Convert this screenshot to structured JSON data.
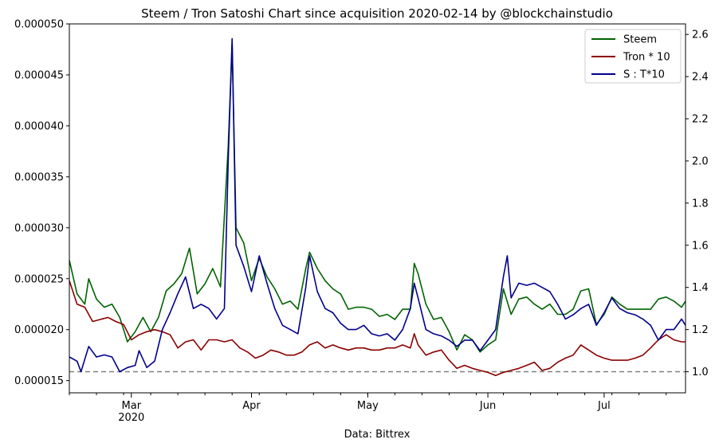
{
  "chart_data": {
    "type": "line",
    "title": "Steem / Tron Satoshi Chart since acquisition 2020-02-14 by @blockchainstudio",
    "xlabel": "Data: Bittrex",
    "x_start": "2020-02-14",
    "x_end": "2020-07-22",
    "xlim": [
      "2020-02-14",
      "2020-07-22"
    ],
    "x_ticks": [
      {
        "date": "2020-03-01",
        "label": "Mar",
        "sublabel": "2020"
      },
      {
        "date": "2020-04-01",
        "label": "Apr",
        "sublabel": ""
      },
      {
        "date": "2020-05-01",
        "label": "May",
        "sublabel": ""
      },
      {
        "date": "2020-06-01",
        "label": "Jun",
        "sublabel": ""
      },
      {
        "date": "2020-07-01",
        "label": "Jul",
        "sublabel": ""
      }
    ],
    "y_left": {
      "ylim": [
        1.38e-05,
        5e-05
      ],
      "ticks": [
        "0.000015",
        "0.000020",
        "0.000025",
        "0.000030",
        "0.000035",
        "0.000040",
        "0.000045",
        "0.000050"
      ],
      "tick_values": [
        1.5e-05,
        2e-05,
        2.5e-05,
        3e-05,
        3.5e-05,
        4e-05,
        4.5e-05,
        5e-05
      ]
    },
    "y_right": {
      "ylim": [
        0.9,
        2.65
      ],
      "ticks": [
        "1.0",
        "1.2",
        "1.4",
        "1.6",
        "1.8",
        "2.0",
        "2.2",
        "2.4",
        "2.6"
      ],
      "tick_values": [
        1.0,
        1.2,
        1.4,
        1.6,
        1.8,
        2.0,
        2.2,
        2.4,
        2.6
      ]
    },
    "reference_line": {
      "axis": "right",
      "value": 1.0,
      "style": "dashed",
      "color": "#808080"
    },
    "legend": {
      "position": "top-right"
    },
    "series": [
      {
        "name": "Steem",
        "axis": "left",
        "color": "#006400",
        "points": [
          [
            "2020-02-14",
            2.68e-05
          ],
          [
            "2020-02-16",
            2.35e-05
          ],
          [
            "2020-02-18",
            2.25e-05
          ],
          [
            "2020-02-19",
            2.5e-05
          ],
          [
            "2020-02-21",
            2.3e-05
          ],
          [
            "2020-02-23",
            2.22e-05
          ],
          [
            "2020-02-25",
            2.25e-05
          ],
          [
            "2020-02-27",
            2.12e-05
          ],
          [
            "2020-02-29",
            1.88e-05
          ],
          [
            "2020-03-02",
            1.98e-05
          ],
          [
            "2020-03-04",
            2.12e-05
          ],
          [
            "2020-03-06",
            1.98e-05
          ],
          [
            "2020-03-08",
            2.12e-05
          ],
          [
            "2020-03-10",
            2.38e-05
          ],
          [
            "2020-03-12",
            2.45e-05
          ],
          [
            "2020-03-14",
            2.55e-05
          ],
          [
            "2020-03-16",
            2.8e-05
          ],
          [
            "2020-03-18",
            2.35e-05
          ],
          [
            "2020-03-20",
            2.45e-05
          ],
          [
            "2020-03-22",
            2.6e-05
          ],
          [
            "2020-03-24",
            2.42e-05
          ],
          [
            "2020-03-26",
            3.8e-05
          ],
          [
            "2020-03-27",
            4.8e-05
          ],
          [
            "2020-03-28",
            3e-05
          ],
          [
            "2020-03-30",
            2.85e-05
          ],
          [
            "2020-04-01",
            2.48e-05
          ],
          [
            "2020-04-03",
            2.7e-05
          ],
          [
            "2020-04-05",
            2.52e-05
          ],
          [
            "2020-04-07",
            2.4e-05
          ],
          [
            "2020-04-09",
            2.25e-05
          ],
          [
            "2020-04-11",
            2.28e-05
          ],
          [
            "2020-04-13",
            2.2e-05
          ],
          [
            "2020-04-15",
            2.6e-05
          ],
          [
            "2020-04-16",
            2.76e-05
          ],
          [
            "2020-04-18",
            2.6e-05
          ],
          [
            "2020-04-20",
            2.48e-05
          ],
          [
            "2020-04-22",
            2.4e-05
          ],
          [
            "2020-04-24",
            2.35e-05
          ],
          [
            "2020-04-26",
            2.2e-05
          ],
          [
            "2020-04-28",
            2.22e-05
          ],
          [
            "2020-04-30",
            2.22e-05
          ],
          [
            "2020-05-02",
            2.2e-05
          ],
          [
            "2020-05-04",
            2.13e-05
          ],
          [
            "2020-05-06",
            2.15e-05
          ],
          [
            "2020-05-08",
            2.1e-05
          ],
          [
            "2020-05-10",
            2.2e-05
          ],
          [
            "2020-05-12",
            2.2e-05
          ],
          [
            "2020-05-13",
            2.65e-05
          ],
          [
            "2020-05-14",
            2.55e-05
          ],
          [
            "2020-05-16",
            2.25e-05
          ],
          [
            "2020-05-18",
            2.1e-05
          ],
          [
            "2020-05-20",
            2.12e-05
          ],
          [
            "2020-05-22",
            1.98e-05
          ],
          [
            "2020-05-24",
            1.8e-05
          ],
          [
            "2020-05-26",
            1.95e-05
          ],
          [
            "2020-05-28",
            1.9e-05
          ],
          [
            "2020-05-30",
            1.78e-05
          ],
          [
            "2020-06-01",
            1.85e-05
          ],
          [
            "2020-06-03",
            1.9e-05
          ],
          [
            "2020-06-05",
            2.4e-05
          ],
          [
            "2020-06-07",
            2.15e-05
          ],
          [
            "2020-06-09",
            2.3e-05
          ],
          [
            "2020-06-11",
            2.32e-05
          ],
          [
            "2020-06-13",
            2.25e-05
          ],
          [
            "2020-06-15",
            2.2e-05
          ],
          [
            "2020-06-17",
            2.25e-05
          ],
          [
            "2020-06-19",
            2.15e-05
          ],
          [
            "2020-06-21",
            2.15e-05
          ],
          [
            "2020-06-23",
            2.2e-05
          ],
          [
            "2020-06-25",
            2.38e-05
          ],
          [
            "2020-06-27",
            2.4e-05
          ],
          [
            "2020-06-29",
            2.05e-05
          ],
          [
            "2020-07-01",
            2.15e-05
          ],
          [
            "2020-07-03",
            2.32e-05
          ],
          [
            "2020-07-05",
            2.25e-05
          ],
          [
            "2020-07-07",
            2.2e-05
          ],
          [
            "2020-07-09",
            2.2e-05
          ],
          [
            "2020-07-11",
            2.2e-05
          ],
          [
            "2020-07-13",
            2.2e-05
          ],
          [
            "2020-07-15",
            2.3e-05
          ],
          [
            "2020-07-17",
            2.32e-05
          ],
          [
            "2020-07-19",
            2.28e-05
          ],
          [
            "2020-07-21",
            2.22e-05
          ],
          [
            "2020-07-22",
            2.28e-05
          ]
        ]
      },
      {
        "name": "Tron * 10",
        "axis": "left",
        "color": "#8b0000",
        "points": [
          [
            "2020-02-14",
            2.48e-05
          ],
          [
            "2020-02-16",
            2.25e-05
          ],
          [
            "2020-02-18",
            2.22e-05
          ],
          [
            "2020-02-20",
            2.08e-05
          ],
          [
            "2020-02-22",
            2.1e-05
          ],
          [
            "2020-02-24",
            2.12e-05
          ],
          [
            "2020-02-26",
            2.08e-05
          ],
          [
            "2020-02-28",
            2.05e-05
          ],
          [
            "2020-03-01",
            1.9e-05
          ],
          [
            "2020-03-03",
            1.95e-05
          ],
          [
            "2020-03-05",
            1.98e-05
          ],
          [
            "2020-03-07",
            2e-05
          ],
          [
            "2020-03-09",
            1.98e-05
          ],
          [
            "2020-03-11",
            1.95e-05
          ],
          [
            "2020-03-13",
            1.82e-05
          ],
          [
            "2020-03-15",
            1.88e-05
          ],
          [
            "2020-03-17",
            1.9e-05
          ],
          [
            "2020-03-19",
            1.8e-05
          ],
          [
            "2020-03-21",
            1.9e-05
          ],
          [
            "2020-03-23",
            1.9e-05
          ],
          [
            "2020-03-25",
            1.88e-05
          ],
          [
            "2020-03-27",
            1.9e-05
          ],
          [
            "2020-03-29",
            1.82e-05
          ],
          [
            "2020-03-31",
            1.78e-05
          ],
          [
            "2020-04-02",
            1.72e-05
          ],
          [
            "2020-04-04",
            1.75e-05
          ],
          [
            "2020-04-06",
            1.8e-05
          ],
          [
            "2020-04-08",
            1.78e-05
          ],
          [
            "2020-04-10",
            1.75e-05
          ],
          [
            "2020-04-12",
            1.75e-05
          ],
          [
            "2020-04-14",
            1.78e-05
          ],
          [
            "2020-04-16",
            1.85e-05
          ],
          [
            "2020-04-18",
            1.88e-05
          ],
          [
            "2020-04-20",
            1.82e-05
          ],
          [
            "2020-04-22",
            1.85e-05
          ],
          [
            "2020-04-24",
            1.82e-05
          ],
          [
            "2020-04-26",
            1.8e-05
          ],
          [
            "2020-04-28",
            1.82e-05
          ],
          [
            "2020-04-30",
            1.82e-05
          ],
          [
            "2020-05-02",
            1.8e-05
          ],
          [
            "2020-05-04",
            1.8e-05
          ],
          [
            "2020-05-06",
            1.82e-05
          ],
          [
            "2020-05-08",
            1.82e-05
          ],
          [
            "2020-05-10",
            1.85e-05
          ],
          [
            "2020-05-12",
            1.82e-05
          ],
          [
            "2020-05-13",
            1.96e-05
          ],
          [
            "2020-05-14",
            1.85e-05
          ],
          [
            "2020-05-16",
            1.75e-05
          ],
          [
            "2020-05-18",
            1.78e-05
          ],
          [
            "2020-05-20",
            1.8e-05
          ],
          [
            "2020-05-22",
            1.7e-05
          ],
          [
            "2020-05-24",
            1.62e-05
          ],
          [
            "2020-05-26",
            1.65e-05
          ],
          [
            "2020-05-28",
            1.62e-05
          ],
          [
            "2020-05-30",
            1.6e-05
          ],
          [
            "2020-06-01",
            1.58e-05
          ],
          [
            "2020-06-03",
            1.55e-05
          ],
          [
            "2020-06-05",
            1.58e-05
          ],
          [
            "2020-06-07",
            1.6e-05
          ],
          [
            "2020-06-09",
            1.62e-05
          ],
          [
            "2020-06-11",
            1.65e-05
          ],
          [
            "2020-06-13",
            1.68e-05
          ],
          [
            "2020-06-15",
            1.6e-05
          ],
          [
            "2020-06-17",
            1.62e-05
          ],
          [
            "2020-06-19",
            1.68e-05
          ],
          [
            "2020-06-21",
            1.72e-05
          ],
          [
            "2020-06-23",
            1.75e-05
          ],
          [
            "2020-06-25",
            1.85e-05
          ],
          [
            "2020-06-27",
            1.8e-05
          ],
          [
            "2020-06-29",
            1.75e-05
          ],
          [
            "2020-07-01",
            1.72e-05
          ],
          [
            "2020-07-03",
            1.7e-05
          ],
          [
            "2020-07-05",
            1.7e-05
          ],
          [
            "2020-07-07",
            1.7e-05
          ],
          [
            "2020-07-09",
            1.72e-05
          ],
          [
            "2020-07-11",
            1.75e-05
          ],
          [
            "2020-07-13",
            1.82e-05
          ],
          [
            "2020-07-15",
            1.9e-05
          ],
          [
            "2020-07-17",
            1.95e-05
          ],
          [
            "2020-07-19",
            1.9e-05
          ],
          [
            "2020-07-21",
            1.88e-05
          ],
          [
            "2020-07-22",
            1.88e-05
          ]
        ]
      },
      {
        "name": "S : T*10",
        "axis": "right",
        "color": "#00008b",
        "points": [
          [
            "2020-02-14",
            1.07
          ],
          [
            "2020-02-16",
            1.05
          ],
          [
            "2020-02-17",
            1.0
          ],
          [
            "2020-02-19",
            1.12
          ],
          [
            "2020-02-21",
            1.07
          ],
          [
            "2020-02-23",
            1.08
          ],
          [
            "2020-02-25",
            1.07
          ],
          [
            "2020-02-27",
            1.0
          ],
          [
            "2020-02-29",
            1.02
          ],
          [
            "2020-03-02",
            1.03
          ],
          [
            "2020-03-03",
            1.1
          ],
          [
            "2020-03-05",
            1.02
          ],
          [
            "2020-03-07",
            1.05
          ],
          [
            "2020-03-09",
            1.2
          ],
          [
            "2020-03-11",
            1.28
          ],
          [
            "2020-03-13",
            1.37
          ],
          [
            "2020-03-15",
            1.45
          ],
          [
            "2020-03-17",
            1.3
          ],
          [
            "2020-03-19",
            1.32
          ],
          [
            "2020-03-21",
            1.3
          ],
          [
            "2020-03-23",
            1.25
          ],
          [
            "2020-03-25",
            1.3
          ],
          [
            "2020-03-26",
            2.0
          ],
          [
            "2020-03-27",
            2.58
          ],
          [
            "2020-03-28",
            1.6
          ],
          [
            "2020-03-30",
            1.5
          ],
          [
            "2020-04-01",
            1.38
          ],
          [
            "2020-04-03",
            1.55
          ],
          [
            "2020-04-05",
            1.42
          ],
          [
            "2020-04-07",
            1.3
          ],
          [
            "2020-04-09",
            1.22
          ],
          [
            "2020-04-11",
            1.2
          ],
          [
            "2020-04-13",
            1.18
          ],
          [
            "2020-04-15",
            1.4
          ],
          [
            "2020-04-16",
            1.55
          ],
          [
            "2020-04-18",
            1.38
          ],
          [
            "2020-04-20",
            1.3
          ],
          [
            "2020-04-22",
            1.28
          ],
          [
            "2020-04-24",
            1.23
          ],
          [
            "2020-04-26",
            1.2
          ],
          [
            "2020-04-28",
            1.2
          ],
          [
            "2020-04-30",
            1.22
          ],
          [
            "2020-05-02",
            1.18
          ],
          [
            "2020-05-04",
            1.17
          ],
          [
            "2020-05-06",
            1.18
          ],
          [
            "2020-05-08",
            1.15
          ],
          [
            "2020-05-10",
            1.2
          ],
          [
            "2020-05-12",
            1.3
          ],
          [
            "2020-05-13",
            1.42
          ],
          [
            "2020-05-14",
            1.35
          ],
          [
            "2020-05-16",
            1.2
          ],
          [
            "2020-05-18",
            1.18
          ],
          [
            "2020-05-20",
            1.17
          ],
          [
            "2020-05-22",
            1.15
          ],
          [
            "2020-05-24",
            1.12
          ],
          [
            "2020-05-26",
            1.15
          ],
          [
            "2020-05-28",
            1.15
          ],
          [
            "2020-05-30",
            1.1
          ],
          [
            "2020-06-01",
            1.15
          ],
          [
            "2020-06-03",
            1.2
          ],
          [
            "2020-06-05",
            1.45
          ],
          [
            "2020-06-06",
            1.55
          ],
          [
            "2020-06-07",
            1.35
          ],
          [
            "2020-06-09",
            1.42
          ],
          [
            "2020-06-11",
            1.41
          ],
          [
            "2020-06-13",
            1.42
          ],
          [
            "2020-06-15",
            1.4
          ],
          [
            "2020-06-17",
            1.38
          ],
          [
            "2020-06-19",
            1.32
          ],
          [
            "2020-06-21",
            1.25
          ],
          [
            "2020-06-23",
            1.27
          ],
          [
            "2020-06-25",
            1.3
          ],
          [
            "2020-06-27",
            1.32
          ],
          [
            "2020-06-29",
            1.22
          ],
          [
            "2020-07-01",
            1.28
          ],
          [
            "2020-07-03",
            1.35
          ],
          [
            "2020-07-05",
            1.3
          ],
          [
            "2020-07-07",
            1.28
          ],
          [
            "2020-07-09",
            1.27
          ],
          [
            "2020-07-11",
            1.25
          ],
          [
            "2020-07-13",
            1.22
          ],
          [
            "2020-07-15",
            1.15
          ],
          [
            "2020-07-17",
            1.2
          ],
          [
            "2020-07-19",
            1.2
          ],
          [
            "2020-07-21",
            1.25
          ],
          [
            "2020-07-22",
            1.22
          ]
        ]
      }
    ]
  }
}
